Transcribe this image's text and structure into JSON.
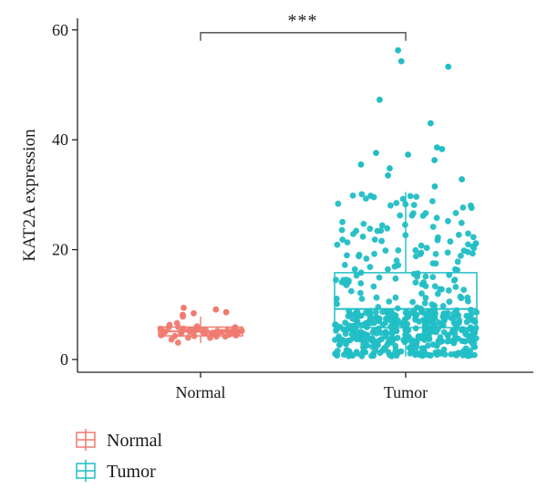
{
  "chart_data": {
    "type": "boxplot",
    "title": "",
    "xlabel": "",
    "ylabel": "KAT2A expression",
    "ylim": [
      -2,
      62
    ],
    "yticks": [
      0,
      20,
      40,
      60
    ],
    "categories": [
      "Normal",
      "Tumor"
    ],
    "colors": {
      "Normal": "#F07A70",
      "Tumor": "#21BEC5"
    },
    "grid": false,
    "legend": {
      "position": "bottom-left",
      "entries": [
        "Normal",
        "Tumor"
      ]
    },
    "significance": {
      "label": "***",
      "between": [
        "Normal",
        "Tumor"
      ],
      "y": 59.5
    },
    "boxes": [
      {
        "name": "Normal",
        "min": 3.0,
        "q1": 4.3,
        "median": 5.1,
        "q3": 5.9,
        "max": 7.8
      },
      {
        "name": "Tumor",
        "min": 0.5,
        "q1": 5.8,
        "median": 9.2,
        "q3": 15.8,
        "max": 30.5
      }
    ],
    "outliers": {
      "Normal": [
        9.4,
        9.1,
        8.6,
        8.4,
        8.1
      ],
      "Tumor": [
        56.3,
        54.3,
        53.3,
        47.3,
        43.0,
        38.6,
        38.3,
        37.6,
        37.3,
        36.3,
        35.5,
        34.8,
        33.5,
        32.8,
        31.5
      ]
    },
    "points": {
      "Normal": {
        "n": 50,
        "median": 5.0,
        "spread": 1.2,
        "min": 2.5
      },
      "Tumor": {
        "n": 530,
        "median": 9.2,
        "spread": 6.0,
        "min": 0.5,
        "max": 30
      }
    }
  }
}
